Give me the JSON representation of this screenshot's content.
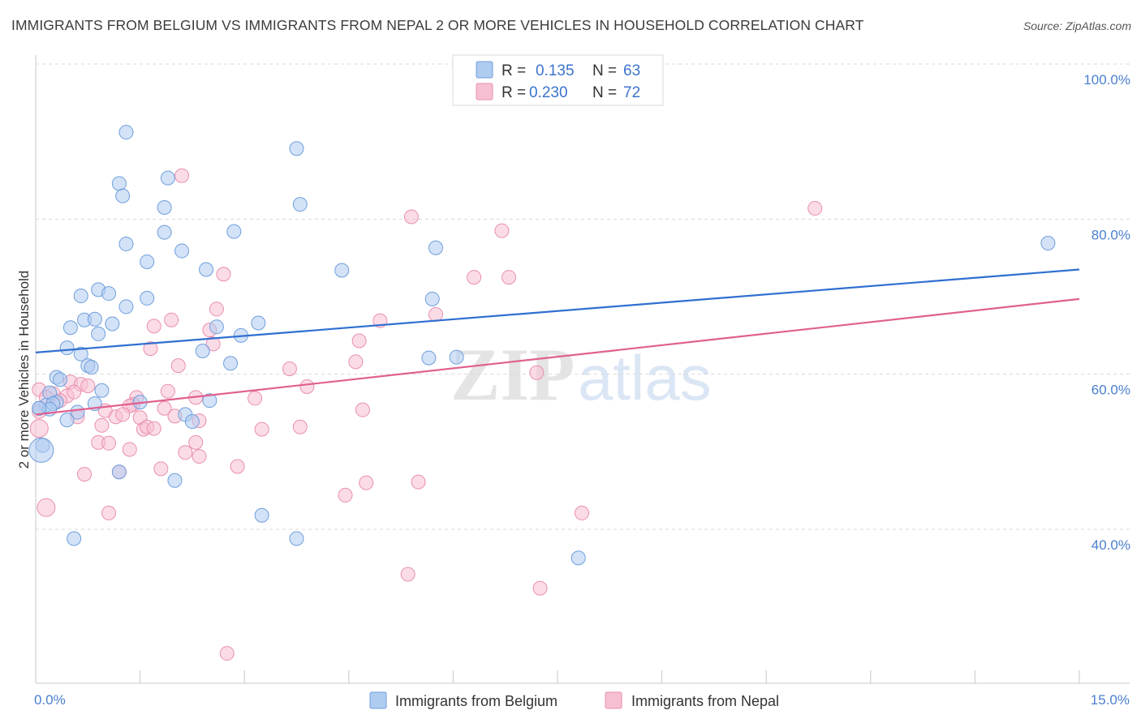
{
  "title": "IMMIGRANTS FROM BELGIUM VS IMMIGRANTS FROM NEPAL 2 OR MORE VEHICLES IN HOUSEHOLD CORRELATION CHART",
  "source": "Source: ZipAtlas.com",
  "watermark": {
    "zip": "ZIP",
    "atlas": "atlas"
  },
  "colors": {
    "belgium_fill": "#aecbf0",
    "belgium_stroke": "#6f9fdc",
    "belgium_line": "#2f6fd0",
    "nepal_fill": "#f7bfd2",
    "nepal_stroke": "#e98fb0",
    "nepal_line": "#e0608e",
    "axis_text": "#4a7fcf",
    "grid": "#d8d8d8"
  },
  "legend": {
    "r_label": "R =",
    "n_label": "N =",
    "belgium_r": "0.135",
    "belgium_n": "63",
    "nepal_r": "0.230",
    "nepal_n": "72"
  },
  "chart_data": {
    "type": "scatter",
    "xlabel": "",
    "ylabel": "2 or more Vehicles in Household",
    "xlim": [
      0,
      15
    ],
    "ylim": [
      20,
      102
    ],
    "x_tick_labels": [
      "0.0%",
      "15.0%"
    ],
    "y_ticks": [
      40,
      60,
      80,
      100
    ],
    "y_tick_labels": [
      "40.0%",
      "60.0%",
      "80.0%",
      "100.0%"
    ],
    "series": [
      {
        "name": "Immigrants from Belgium",
        "r": 0.135,
        "n": 63,
        "trend": {
          "x": [
            0,
            15
          ],
          "y": [
            62.8,
            73.5
          ]
        },
        "points": [
          [
            1.3,
            91.2
          ],
          [
            3.75,
            89.1
          ],
          [
            1.2,
            84.6
          ],
          [
            1.9,
            85.3
          ],
          [
            1.25,
            83.0
          ],
          [
            3.8,
            81.9
          ],
          [
            1.85,
            81.5
          ],
          [
            1.3,
            76.8
          ],
          [
            1.85,
            78.3
          ],
          [
            2.85,
            78.4
          ],
          [
            2.1,
            75.9
          ],
          [
            1.6,
            74.5
          ],
          [
            2.45,
            73.5
          ],
          [
            4.4,
            73.4
          ],
          [
            5.75,
            76.3
          ],
          [
            14.55,
            76.9
          ],
          [
            0.9,
            70.9
          ],
          [
            0.65,
            70.1
          ],
          [
            1.05,
            70.4
          ],
          [
            1.6,
            69.8
          ],
          [
            5.7,
            69.7
          ],
          [
            1.3,
            68.7
          ],
          [
            0.7,
            67.0
          ],
          [
            0.85,
            67.1
          ],
          [
            1.1,
            66.5
          ],
          [
            0.5,
            66.0
          ],
          [
            3.2,
            66.6
          ],
          [
            0.9,
            65.2
          ],
          [
            2.6,
            66.1
          ],
          [
            2.95,
            65.0
          ],
          [
            0.45,
            63.4
          ],
          [
            0.65,
            62.6
          ],
          [
            2.4,
            63.0
          ],
          [
            5.65,
            62.1
          ],
          [
            6.05,
            62.2
          ],
          [
            0.75,
            61.1
          ],
          [
            0.8,
            60.9
          ],
          [
            2.8,
            61.4
          ],
          [
            0.3,
            59.6
          ],
          [
            0.35,
            59.3
          ],
          [
            1.5,
            56.4
          ],
          [
            0.2,
            57.6
          ],
          [
            0.95,
            57.9
          ],
          [
            0.15,
            56.0
          ],
          [
            0.3,
            56.4
          ],
          [
            0.25,
            56.2
          ],
          [
            0.05,
            55.6
          ],
          [
            0.2,
            55.5
          ],
          [
            0.6,
            55.1
          ],
          [
            0.85,
            56.2
          ],
          [
            2.15,
            54.8
          ],
          [
            2.25,
            53.9
          ],
          [
            0.45,
            54.1
          ],
          [
            0.05,
            55.6
          ],
          [
            0.1,
            50.8
          ],
          [
            0.08,
            50.2
          ],
          [
            1.2,
            47.4
          ],
          [
            2.0,
            46.3
          ],
          [
            3.25,
            41.8
          ],
          [
            0.55,
            38.8
          ],
          [
            3.75,
            38.8
          ],
          [
            7.8,
            36.3
          ],
          [
            2.5,
            56.6
          ]
        ]
      },
      {
        "name": "Immigrants from Nepal",
        "r": 0.23,
        "n": 72,
        "trend": {
          "x": [
            0,
            15
          ],
          "y": [
            54.8,
            69.7
          ]
        },
        "points": [
          [
            2.1,
            85.6
          ],
          [
            11.2,
            81.4
          ],
          [
            5.4,
            80.3
          ],
          [
            6.7,
            78.5
          ],
          [
            2.7,
            72.9
          ],
          [
            6.3,
            72.5
          ],
          [
            6.8,
            72.5
          ],
          [
            2.6,
            68.4
          ],
          [
            5.75,
            67.7
          ],
          [
            1.95,
            67.0
          ],
          [
            4.95,
            66.9
          ],
          [
            1.7,
            66.2
          ],
          [
            2.5,
            65.7
          ],
          [
            2.55,
            63.9
          ],
          [
            4.65,
            64.3
          ],
          [
            1.65,
            63.3
          ],
          [
            4.6,
            61.6
          ],
          [
            2.05,
            61.1
          ],
          [
            3.65,
            60.7
          ],
          [
            7.2,
            60.2
          ],
          [
            0.5,
            59.0
          ],
          [
            0.65,
            58.7
          ],
          [
            0.75,
            58.5
          ],
          [
            3.9,
            58.4
          ],
          [
            0.25,
            57.5
          ],
          [
            0.45,
            57.2
          ],
          [
            0.55,
            57.7
          ],
          [
            1.9,
            57.8
          ],
          [
            1.45,
            57.0
          ],
          [
            2.3,
            57.0
          ],
          [
            3.15,
            56.9
          ],
          [
            0.35,
            56.6
          ],
          [
            1.4,
            56.1
          ],
          [
            1.35,
            55.9
          ],
          [
            1.85,
            55.6
          ],
          [
            4.7,
            55.4
          ],
          [
            1.0,
            55.3
          ],
          [
            1.15,
            54.5
          ],
          [
            1.25,
            54.8
          ],
          [
            1.5,
            54.4
          ],
          [
            2.0,
            54.6
          ],
          [
            2.35,
            54.0
          ],
          [
            0.05,
            55.2
          ],
          [
            0.6,
            54.5
          ],
          [
            0.95,
            53.4
          ],
          [
            1.55,
            52.9
          ],
          [
            1.6,
            53.2
          ],
          [
            3.25,
            52.9
          ],
          [
            3.8,
            53.2
          ],
          [
            0.05,
            53.0
          ],
          [
            0.9,
            51.2
          ],
          [
            1.05,
            51.1
          ],
          [
            2.3,
            51.2
          ],
          [
            1.35,
            50.3
          ],
          [
            2.15,
            49.9
          ],
          [
            2.35,
            49.4
          ],
          [
            2.9,
            48.1
          ],
          [
            1.8,
            47.8
          ],
          [
            0.7,
            47.1
          ],
          [
            1.2,
            47.4
          ],
          [
            4.75,
            46.0
          ],
          [
            5.5,
            46.1
          ],
          [
            4.45,
            44.4
          ],
          [
            0.15,
            42.8
          ],
          [
            1.05,
            42.1
          ],
          [
            7.85,
            42.1
          ],
          [
            5.35,
            34.2
          ],
          [
            7.25,
            32.4
          ],
          [
            2.75,
            24.0
          ],
          [
            0.05,
            58.0
          ],
          [
            0.15,
            57.0
          ],
          [
            1.7,
            53.0
          ]
        ]
      }
    ]
  },
  "bottom_legend": {
    "belgium": "Immigrants from Belgium",
    "nepal": "Immigrants from Nepal"
  }
}
